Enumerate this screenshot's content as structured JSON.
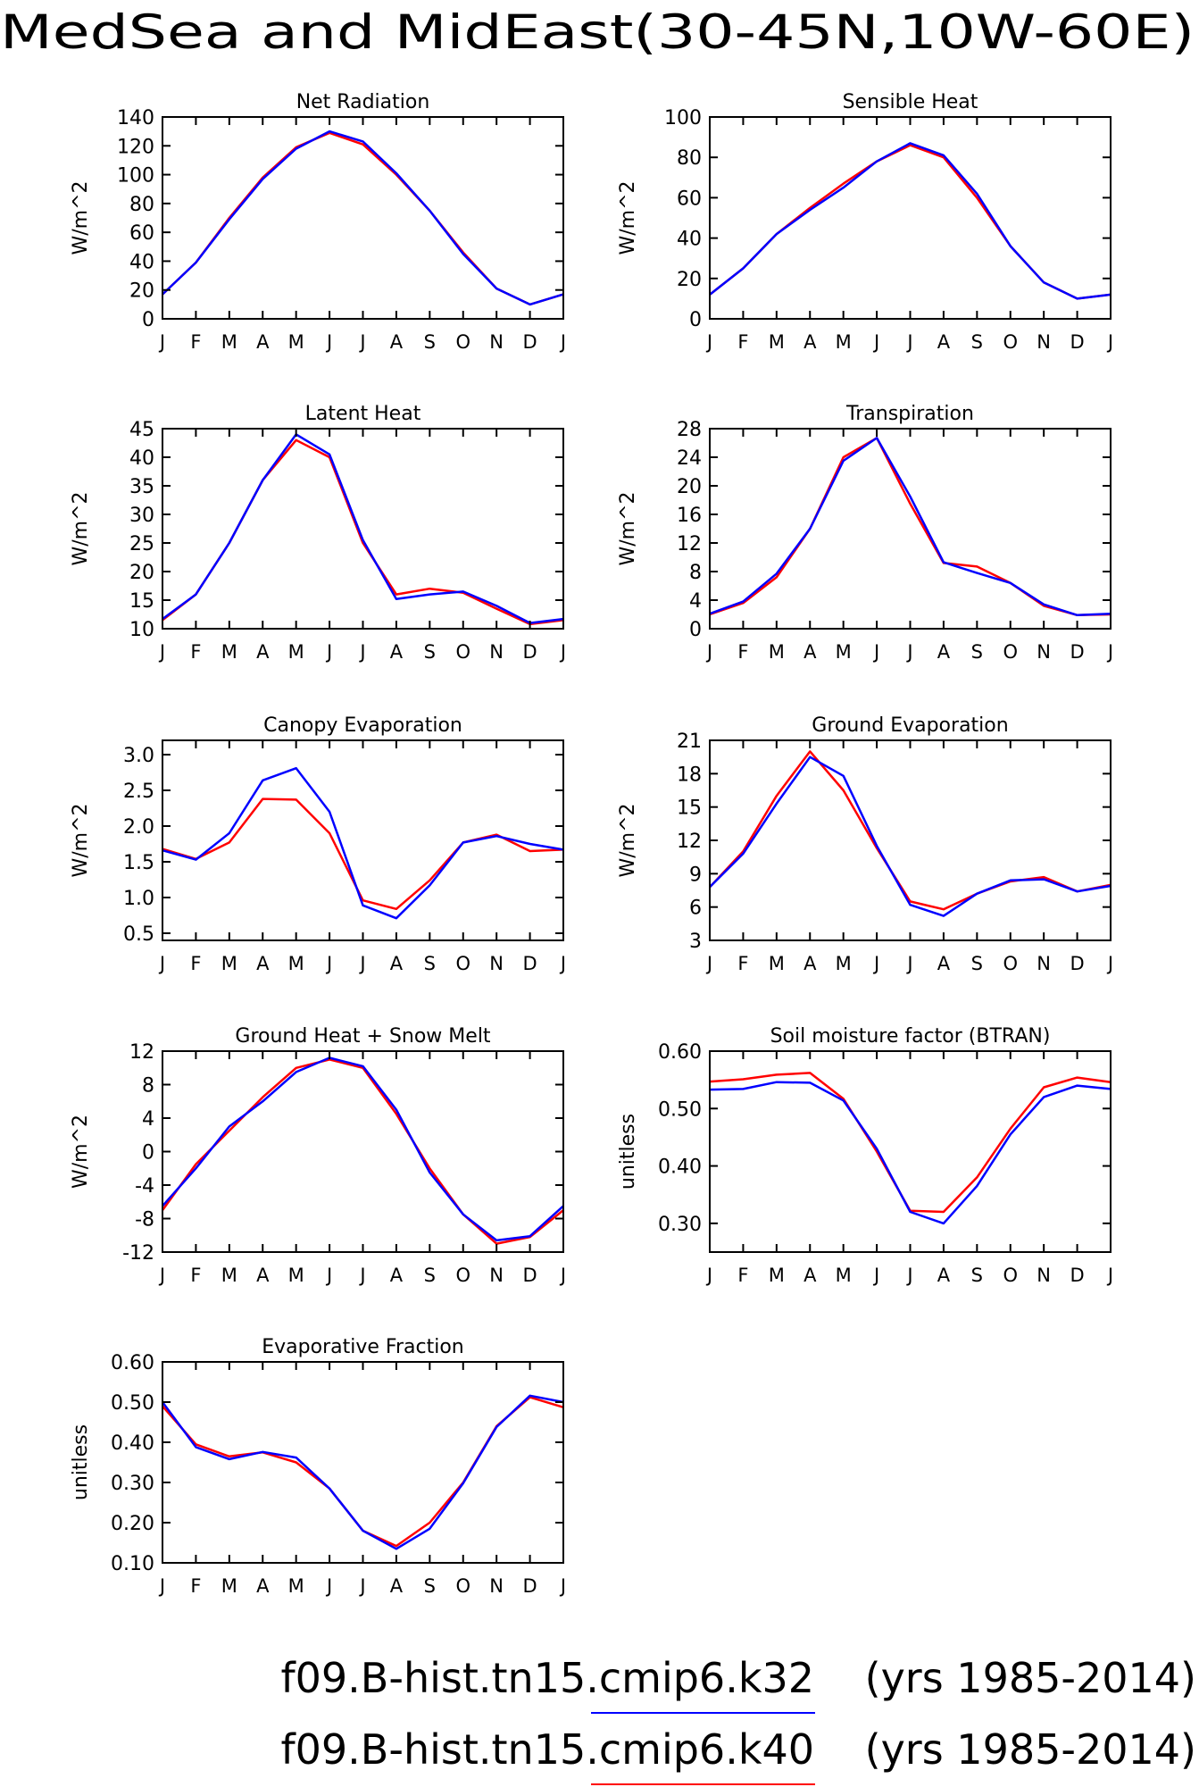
{
  "page_title": "MedSea and MidEast(30-45N,10W-60E)",
  "legend": [
    {
      "label": "f09.B-hist.tn15.cmip6.k32",
      "years": "(yrs 1985-2014)",
      "color": "#0000ff"
    },
    {
      "label": "f09.B-hist.tn15.cmip6.k40",
      "years": "(yrs 1985-2014)",
      "color": "#ff0000"
    }
  ],
  "chart_data": [
    {
      "type": "line",
      "title": "Net Radiation",
      "xlabel": "",
      "ylabel": "W/m^2",
      "categories": [
        "J",
        "F",
        "M",
        "A",
        "M",
        "J",
        "J",
        "A",
        "S",
        "O",
        "N",
        "D",
        "J"
      ],
      "ylim": [
        0,
        140
      ],
      "yticks": [
        0,
        20,
        40,
        60,
        80,
        100,
        120,
        140
      ],
      "yticklabels": [
        "0",
        "20",
        "40",
        "60",
        "80",
        "100",
        "120",
        "140"
      ],
      "series": [
        {
          "color": "#ff0000",
          "values": [
            17,
            39,
            70,
            98,
            119,
            129,
            121,
            100,
            75,
            46,
            21,
            10,
            17
          ]
        },
        {
          "color": "#0000ff",
          "values": [
            17,
            39,
            69,
            97,
            118,
            130,
            123,
            101,
            75,
            45,
            21,
            10,
            17
          ]
        }
      ]
    },
    {
      "type": "line",
      "title": "Sensible Heat",
      "xlabel": "",
      "ylabel": "W/m^2",
      "categories": [
        "J",
        "F",
        "M",
        "A",
        "M",
        "J",
        "J",
        "A",
        "S",
        "O",
        "N",
        "D",
        "J"
      ],
      "ylim": [
        0,
        100
      ],
      "yticks": [
        0,
        20,
        40,
        60,
        80,
        100
      ],
      "yticklabels": [
        "0",
        "20",
        "40",
        "60",
        "80",
        "100"
      ],
      "series": [
        {
          "color": "#ff0000",
          "values": [
            12,
            25,
            42,
            55,
            67,
            78,
            86,
            80,
            60,
            36,
            18,
            10,
            12
          ]
        },
        {
          "color": "#0000ff",
          "values": [
            12,
            25,
            42,
            54,
            65,
            78,
            87,
            81,
            62,
            36,
            18,
            10,
            12
          ]
        }
      ]
    },
    {
      "type": "line",
      "title": "Latent Heat",
      "xlabel": "",
      "ylabel": "W/m^2",
      "categories": [
        "J",
        "F",
        "M",
        "A",
        "M",
        "J",
        "J",
        "A",
        "S",
        "O",
        "N",
        "D",
        "J"
      ],
      "ylim": [
        10,
        45
      ],
      "yticks": [
        10,
        15,
        20,
        25,
        30,
        35,
        40,
        45
      ],
      "yticklabels": [
        "10",
        "15",
        "20",
        "25",
        "30",
        "35",
        "40",
        "45"
      ],
      "series": [
        {
          "color": "#ff0000",
          "values": [
            11.5,
            16,
            25,
            36,
            43,
            40,
            25,
            16,
            17,
            16.3,
            13.5,
            10.8,
            11.5
          ]
        },
        {
          "color": "#0000ff",
          "values": [
            11.7,
            16,
            25,
            36,
            44,
            40.5,
            25.5,
            15.2,
            16,
            16.5,
            14,
            11,
            11.7
          ]
        }
      ]
    },
    {
      "type": "line",
      "title": "Transpiration",
      "xlabel": "",
      "ylabel": "W/m^2",
      "categories": [
        "J",
        "F",
        "M",
        "A",
        "M",
        "J",
        "J",
        "A",
        "S",
        "O",
        "N",
        "D",
        "J"
      ],
      "ylim": [
        0,
        28
      ],
      "yticks": [
        0,
        4,
        8,
        12,
        16,
        20,
        24,
        28
      ],
      "yticklabels": [
        "0",
        "4",
        "8",
        "12",
        "16",
        "20",
        "24",
        "28"
      ],
      "series": [
        {
          "color": "#ff0000",
          "values": [
            2,
            3.6,
            7.2,
            14,
            24,
            26.7,
            17.5,
            9.2,
            8.7,
            6.4,
            3.2,
            1.9,
            2
          ]
        },
        {
          "color": "#0000ff",
          "values": [
            2.1,
            3.8,
            7.7,
            14,
            23.5,
            26.7,
            18.5,
            9.3,
            7.8,
            6.4,
            3.4,
            1.9,
            2.1
          ]
        }
      ]
    },
    {
      "type": "line",
      "title": "Canopy Evaporation",
      "xlabel": "",
      "ylabel": "W/m^2",
      "categories": [
        "J",
        "F",
        "M",
        "A",
        "M",
        "J",
        "J",
        "A",
        "S",
        "O",
        "N",
        "D",
        "J"
      ],
      "ylim": [
        0.4,
        3.2
      ],
      "yticks": [
        0.5,
        1.0,
        1.5,
        2.0,
        2.5,
        3.0
      ],
      "yticklabels": [
        "0.5",
        "1.0",
        "1.5",
        "2.0",
        "2.5",
        "3.0"
      ],
      "series": [
        {
          "color": "#ff0000",
          "values": [
            1.68,
            1.54,
            1.77,
            2.38,
            2.37,
            1.9,
            0.96,
            0.84,
            1.24,
            1.77,
            1.88,
            1.65,
            1.67
          ]
        },
        {
          "color": "#0000ff",
          "values": [
            1.66,
            1.53,
            1.9,
            2.64,
            2.81,
            2.2,
            0.89,
            0.71,
            1.17,
            1.77,
            1.86,
            1.75,
            1.67
          ]
        }
      ]
    },
    {
      "type": "line",
      "title": "Ground Evaporation",
      "xlabel": "",
      "ylabel": "W/m^2",
      "categories": [
        "J",
        "F",
        "M",
        "A",
        "M",
        "J",
        "J",
        "A",
        "S",
        "O",
        "N",
        "D",
        "J"
      ],
      "ylim": [
        3,
        21
      ],
      "yticks": [
        3,
        6,
        9,
        12,
        15,
        18,
        21
      ],
      "yticklabels": [
        "3",
        "6",
        "9",
        "12",
        "15",
        "18",
        "21"
      ],
      "series": [
        {
          "color": "#ff0000",
          "values": [
            7.8,
            11,
            16,
            20,
            16.5,
            11.3,
            6.5,
            5.8,
            7.2,
            8.3,
            8.7,
            7.4,
            8
          ]
        },
        {
          "color": "#0000ff",
          "values": [
            7.8,
            10.8,
            15.3,
            19.5,
            17.8,
            11.5,
            6.2,
            5.2,
            7.2,
            8.4,
            8.5,
            7.4,
            7.9
          ]
        }
      ]
    },
    {
      "type": "line",
      "title": "Ground Heat + Snow Melt",
      "xlabel": "",
      "ylabel": "W/m^2",
      "categories": [
        "J",
        "F",
        "M",
        "A",
        "M",
        "J",
        "J",
        "A",
        "S",
        "O",
        "N",
        "D",
        "J"
      ],
      "ylim": [
        -12,
        12
      ],
      "yticks": [
        -12,
        -8,
        -4,
        0,
        4,
        8,
        12
      ],
      "yticklabels": [
        "-12",
        "-8",
        "-4",
        "0",
        "4",
        "8",
        "12"
      ],
      "series": [
        {
          "color": "#ff0000",
          "values": [
            -7,
            -1.5,
            2.5,
            6.5,
            10,
            11,
            10,
            4.5,
            -2,
            -7.5,
            -11,
            -10.2,
            -7
          ]
        },
        {
          "color": "#0000ff",
          "values": [
            -6.5,
            -2,
            3,
            6,
            9.5,
            11.2,
            10.2,
            5,
            -2.5,
            -7.5,
            -10.6,
            -10.1,
            -6.5
          ]
        }
      ]
    },
    {
      "type": "line",
      "title": "Soil moisture factor (BTRAN)",
      "xlabel": "",
      "ylabel": "unitless",
      "categories": [
        "J",
        "F",
        "M",
        "A",
        "M",
        "J",
        "J",
        "A",
        "S",
        "O",
        "N",
        "D",
        "J"
      ],
      "ylim": [
        0.25,
        0.6
      ],
      "yticks": [
        0.3,
        0.4,
        0.5,
        0.6
      ],
      "yticklabels": [
        "0.30",
        "0.40",
        "0.50",
        "0.60"
      ],
      "series": [
        {
          "color": "#ff0000",
          "values": [
            0.547,
            0.551,
            0.559,
            0.562,
            0.517,
            0.425,
            0.322,
            0.32,
            0.38,
            0.465,
            0.537,
            0.554,
            0.546
          ]
        },
        {
          "color": "#0000ff",
          "values": [
            0.533,
            0.534,
            0.546,
            0.545,
            0.514,
            0.43,
            0.32,
            0.3,
            0.365,
            0.455,
            0.52,
            0.54,
            0.534
          ]
        }
      ]
    },
    {
      "type": "line",
      "title": "Evaporative Fraction",
      "xlabel": "",
      "ylabel": "unitless",
      "categories": [
        "J",
        "F",
        "M",
        "A",
        "M",
        "J",
        "J",
        "A",
        "S",
        "O",
        "N",
        "D",
        "J"
      ],
      "ylim": [
        0.1,
        0.6
      ],
      "yticks": [
        0.1,
        0.2,
        0.3,
        0.4,
        0.5,
        0.6
      ],
      "yticklabels": [
        "0.10",
        "0.20",
        "0.30",
        "0.40",
        "0.50",
        "0.60"
      ],
      "series": [
        {
          "color": "#ff0000",
          "values": [
            0.49,
            0.395,
            0.365,
            0.375,
            0.35,
            0.285,
            0.18,
            0.142,
            0.2,
            0.3,
            0.44,
            0.512,
            0.487
          ]
        },
        {
          "color": "#0000ff",
          "values": [
            0.5,
            0.388,
            0.358,
            0.376,
            0.362,
            0.285,
            0.18,
            0.135,
            0.185,
            0.298,
            0.438,
            0.516,
            0.5
          ]
        }
      ]
    }
  ]
}
